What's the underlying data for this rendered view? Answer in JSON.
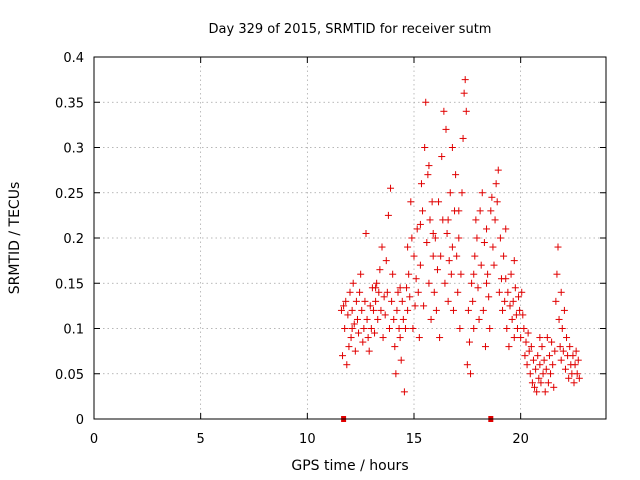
{
  "chart_data": {
    "type": "scatter",
    "title": "Day 329 of 2015, SRMTID for receiver sutm",
    "xlabel": "GPS time / hours",
    "ylabel": "SRMTID / TECUs",
    "xlim": [
      0,
      24
    ],
    "ylim": [
      0,
      0.4
    ],
    "xticks": [
      0,
      5,
      10,
      15,
      20
    ],
    "xtick_labels": [
      "0",
      "5",
      "10",
      "15",
      "20"
    ],
    "yticks": [
      0,
      0.05,
      0.1,
      0.15,
      0.2,
      0.25,
      0.3,
      0.35,
      0.4
    ],
    "ytick_labels": [
      "0",
      "0.05",
      "0.1",
      "0.15",
      "0.2",
      "0.25",
      "0.3",
      "0.35",
      "0.4"
    ],
    "grid": true,
    "marker": "+",
    "color": "#e00000",
    "series": [
      {
        "name": "SRMTID",
        "points": [
          [
            11.6,
            0.12
          ],
          [
            11.65,
            0.07
          ],
          [
            11.7,
            0.125
          ],
          [
            11.75,
            0.1
          ],
          [
            11.8,
            0.13
          ],
          [
            11.85,
            0.06
          ],
          [
            11.9,
            0.115
          ],
          [
            11.95,
            0.08
          ],
          [
            12.0,
            0.14
          ],
          [
            12.05,
            0.09
          ],
          [
            12.1,
            0.12
          ],
          [
            12.15,
            0.15
          ],
          [
            12.2,
            0.105
          ],
          [
            12.25,
            0.075
          ],
          [
            12.3,
            0.13
          ],
          [
            12.35,
            0.11
          ],
          [
            12.4,
            0.095
          ],
          [
            12.45,
            0.14
          ],
          [
            12.5,
            0.16
          ],
          [
            12.55,
            0.12
          ],
          [
            12.6,
            0.085
          ],
          [
            12.65,
            0.1
          ],
          [
            12.7,
            0.13
          ],
          [
            12.75,
            0.205
          ],
          [
            12.8,
            0.11
          ],
          [
            12.85,
            0.09
          ],
          [
            12.9,
            0.075
          ],
          [
            12.95,
            0.125
          ],
          [
            13.0,
            0.1
          ],
          [
            13.05,
            0.145
          ],
          [
            13.1,
            0.12
          ],
          [
            13.15,
            0.095
          ],
          [
            13.2,
            0.13
          ],
          [
            13.25,
            0.15
          ],
          [
            13.3,
            0.11
          ],
          [
            13.35,
            0.14
          ],
          [
            13.4,
            0.165
          ],
          [
            13.45,
            0.12
          ],
          [
            13.5,
            0.19
          ],
          [
            13.55,
            0.09
          ],
          [
            13.6,
            0.135
          ],
          [
            13.65,
            0.115
          ],
          [
            13.7,
            0.175
          ],
          [
            13.75,
            0.14
          ],
          [
            13.8,
            0.225
          ],
          [
            13.85,
            0.1
          ],
          [
            13.9,
            0.255
          ],
          [
            13.95,
            0.13
          ],
          [
            14.0,
            0.16
          ],
          [
            14.05,
            0.11
          ],
          [
            14.1,
            0.08
          ],
          [
            14.15,
            0.05
          ],
          [
            14.2,
            0.12
          ],
          [
            14.25,
            0.14
          ],
          [
            14.3,
            0.1
          ],
          [
            14.35,
            0.09
          ],
          [
            14.4,
            0.065
          ],
          [
            14.45,
            0.13
          ],
          [
            14.5,
            0.11
          ],
          [
            14.55,
            0.03
          ],
          [
            14.6,
            0.1
          ],
          [
            14.65,
            0.145
          ],
          [
            14.7,
            0.12
          ],
          [
            14.75,
            0.16
          ],
          [
            14.8,
            0.135
          ],
          [
            14.85,
            0.24
          ],
          [
            14.9,
            0.2
          ],
          [
            14.95,
            0.1
          ],
          [
            15.0,
            0.18
          ],
          [
            15.05,
            0.125
          ],
          [
            15.1,
            0.155
          ],
          [
            15.15,
            0.21
          ],
          [
            15.2,
            0.14
          ],
          [
            15.25,
            0.09
          ],
          [
            15.3,
            0.17
          ],
          [
            15.35,
            0.26
          ],
          [
            15.4,
            0.23
          ],
          [
            15.45,
            0.125
          ],
          [
            15.5,
            0.3
          ],
          [
            15.55,
            0.35
          ],
          [
            15.6,
            0.195
          ],
          [
            15.65,
            0.27
          ],
          [
            15.7,
            0.15
          ],
          [
            15.75,
            0.22
          ],
          [
            15.8,
            0.11
          ],
          [
            15.85,
            0.24
          ],
          [
            15.9,
            0.18
          ],
          [
            15.95,
            0.14
          ],
          [
            16.0,
            0.2
          ],
          [
            16.05,
            0.12
          ],
          [
            16.1,
            0.165
          ],
          [
            16.15,
            0.24
          ],
          [
            16.2,
            0.09
          ],
          [
            16.25,
            0.18
          ],
          [
            16.3,
            0.29
          ],
          [
            16.35,
            0.22
          ],
          [
            16.4,
            0.34
          ],
          [
            16.45,
            0.15
          ],
          [
            16.5,
            0.32
          ],
          [
            16.55,
            0.205
          ],
          [
            16.6,
            0.13
          ],
          [
            16.65,
            0.175
          ],
          [
            16.7,
            0.25
          ],
          [
            16.75,
            0.16
          ],
          [
            16.8,
            0.19
          ],
          [
            16.85,
            0.12
          ],
          [
            16.9,
            0.23
          ],
          [
            16.95,
            0.27
          ],
          [
            17.0,
            0.18
          ],
          [
            17.05,
            0.14
          ],
          [
            17.1,
            0.2
          ],
          [
            17.15,
            0.1
          ],
          [
            17.2,
            0.16
          ],
          [
            17.25,
            0.25
          ],
          [
            17.3,
            0.31
          ],
          [
            17.35,
            0.36
          ],
          [
            17.4,
            0.375
          ],
          [
            17.45,
            0.34
          ],
          [
            17.5,
            0.06
          ],
          [
            17.55,
            0.12
          ],
          [
            17.6,
            0.085
          ],
          [
            17.65,
            0.05
          ],
          [
            17.7,
            0.15
          ],
          [
            17.75,
            0.13
          ],
          [
            17.8,
            0.1
          ],
          [
            17.85,
            0.18
          ],
          [
            17.9,
            0.22
          ],
          [
            17.95,
            0.2
          ],
          [
            18.0,
            0.145
          ],
          [
            18.05,
            0.11
          ],
          [
            18.1,
            0.23
          ],
          [
            18.15,
            0.17
          ],
          [
            18.2,
            0.25
          ],
          [
            18.25,
            0.12
          ],
          [
            18.3,
            0.195
          ],
          [
            18.35,
            0.08
          ],
          [
            18.4,
            0.15
          ],
          [
            18.45,
            0.16
          ],
          [
            18.5,
            0.135
          ],
          [
            18.55,
            0.1
          ],
          [
            18.6,
            0.23
          ],
          [
            18.65,
            0.245
          ],
          [
            18.7,
            0.19
          ],
          [
            18.75,
            0.17
          ],
          [
            18.8,
            0.22
          ],
          [
            18.85,
            0.26
          ],
          [
            18.9,
            0.24
          ],
          [
            18.95,
            0.275
          ],
          [
            19.0,
            0.14
          ],
          [
            19.05,
            0.2
          ],
          [
            19.1,
            0.155
          ],
          [
            19.15,
            0.12
          ],
          [
            19.2,
            0.18
          ],
          [
            19.25,
            0.13
          ],
          [
            19.3,
            0.155
          ],
          [
            19.35,
            0.1
          ],
          [
            19.4,
            0.14
          ],
          [
            19.45,
            0.08
          ],
          [
            19.5,
            0.125
          ],
          [
            19.55,
            0.16
          ],
          [
            19.6,
            0.11
          ],
          [
            19.65,
            0.13
          ],
          [
            19.7,
            0.09
          ],
          [
            19.75,
            0.145
          ],
          [
            19.8,
            0.115
          ],
          [
            19.85,
            0.1
          ],
          [
            19.9,
            0.135
          ],
          [
            19.95,
            0.12
          ],
          [
            20.0,
            0.09
          ],
          [
            20.05,
            0.14
          ],
          [
            20.1,
            0.115
          ],
          [
            20.15,
            0.1
          ],
          [
            20.2,
            0.07
          ],
          [
            20.25,
            0.085
          ],
          [
            20.3,
            0.06
          ],
          [
            20.35,
            0.095
          ],
          [
            20.4,
            0.075
          ],
          [
            20.45,
            0.05
          ],
          [
            20.5,
            0.08
          ],
          [
            20.55,
            0.04
          ],
          [
            20.6,
            0.065
          ],
          [
            20.65,
            0.035
          ],
          [
            20.7,
            0.055
          ],
          [
            20.75,
            0.03
          ],
          [
            20.8,
            0.07
          ],
          [
            20.85,
            0.045
          ],
          [
            20.9,
            0.06
          ],
          [
            20.95,
            0.04
          ],
          [
            21.0,
            0.08
          ],
          [
            21.05,
            0.05
          ],
          [
            21.1,
            0.065
          ],
          [
            21.15,
            0.03
          ],
          [
            21.2,
            0.055
          ],
          [
            21.25,
            0.09
          ],
          [
            21.3,
            0.04
          ],
          [
            21.35,
            0.07
          ],
          [
            21.4,
            0.05
          ],
          [
            21.45,
            0.085
          ],
          [
            21.5,
            0.06
          ],
          [
            21.55,
            0.035
          ],
          [
            21.6,
            0.075
          ],
          [
            21.65,
            0.13
          ],
          [
            21.7,
            0.16
          ],
          [
            21.75,
            0.19
          ],
          [
            21.8,
            0.11
          ],
          [
            21.85,
            0.08
          ],
          [
            21.9,
            0.065
          ],
          [
            21.95,
            0.1
          ],
          [
            22.0,
            0.075
          ],
          [
            22.05,
            0.12
          ],
          [
            22.1,
            0.055
          ],
          [
            22.15,
            0.09
          ],
          [
            22.2,
            0.07
          ],
          [
            22.25,
            0.045
          ],
          [
            22.3,
            0.08
          ],
          [
            22.35,
            0.06
          ],
          [
            22.4,
            0.05
          ],
          [
            22.45,
            0.07
          ],
          [
            22.5,
            0.04
          ],
          [
            22.55,
            0.06
          ],
          [
            22.6,
            0.075
          ],
          [
            22.65,
            0.05
          ],
          [
            22.7,
            0.065
          ],
          [
            22.75,
            0.045
          ],
          [
            15.3,
            0.215
          ],
          [
            15.9,
            0.205
          ],
          [
            16.6,
            0.22
          ],
          [
            17.1,
            0.23
          ],
          [
            13.2,
            0.145
          ],
          [
            12.1,
            0.1
          ],
          [
            14.35,
            0.145
          ],
          [
            19.7,
            0.175
          ],
          [
            20.9,
            0.09
          ],
          [
            21.9,
            0.14
          ],
          [
            16.8,
            0.3
          ],
          [
            15.7,
            0.28
          ],
          [
            17.8,
            0.16
          ],
          [
            18.4,
            0.21
          ],
          [
            19.3,
            0.21
          ],
          [
            14.7,
            0.19
          ]
        ]
      },
      {
        "name": "markers-at-zero",
        "points": [
          [
            11.7,
            0
          ],
          [
            18.6,
            0
          ]
        ]
      }
    ]
  }
}
